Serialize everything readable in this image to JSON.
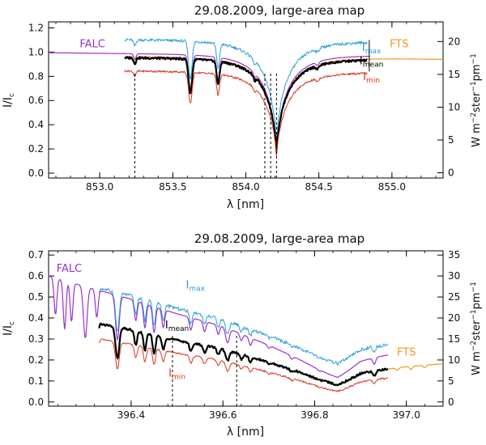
{
  "chart_data": [
    {
      "type": "line",
      "title": "29.08.2009, large-area map",
      "xlabel": "λ [nm]",
      "ylabel": "I/I",
      "ylabel_sub": "c",
      "ylabel_right": "W m",
      "ylabel_right_parts": {
        "p1": "W m",
        "sup1": "−2",
        "p2": "ster",
        "sup2": "−1",
        "p3": "pm",
        "sup3": "−1"
      },
      "xlim": [
        852.65,
        855.35
      ],
      "ylim": [
        -0.04,
        1.25
      ],
      "ylim_right": [
        -0.8,
        23.0
      ],
      "xticks": [
        853.0,
        853.5,
        854.0,
        854.5,
        855.0
      ],
      "xtick_labels": [
        "853.0",
        "853.5",
        "854.0",
        "854.5",
        "855.0"
      ],
      "yticks": [
        0.0,
        0.2,
        0.4,
        0.6,
        0.8,
        1.0,
        1.2
      ],
      "ytick_labels": [
        "0.0",
        "0.2",
        "0.4",
        "0.6",
        "0.8",
        "1.0",
        "1.2"
      ],
      "yticks_right": [
        0,
        5,
        10,
        15,
        20
      ],
      "ytick_right_labels": [
        "0",
        "5",
        "10",
        "15",
        "20"
      ],
      "continuum": {
        "x": [
          852.65,
          853.0,
          853.5,
          854.0,
          854.5,
          855.0,
          855.35
        ],
        "y": [
          0.995,
          0.99,
          0.985,
          0.98,
          0.975,
          0.97,
          0.965
        ]
      },
      "lines": [
        {
          "center": 853.24,
          "depth": 0.05,
          "width": 0.008
        },
        {
          "center": 853.62,
          "depth": 0.3,
          "width": 0.012
        },
        {
          "center": 853.81,
          "depth": 0.2,
          "width": 0.01
        },
        {
          "center": 854.21,
          "depth": 0.82,
          "width": 0.22,
          "shape": "chromospheric"
        },
        {
          "center": 854.06,
          "depth": 0.04,
          "width": 0.008
        },
        {
          "center": 854.49,
          "depth": 0.03,
          "width": 0.01
        }
      ],
      "series": [
        {
          "name": "FALC",
          "color": "#9933cc",
          "range": [
            852.65,
            854.85
          ],
          "scale": 1.0,
          "offset": 0.0,
          "noise": 0.0,
          "stroke": 1.2
        },
        {
          "name": "FTS",
          "color": "#ee9922",
          "range": [
            853.2,
            855.35
          ],
          "scale": 0.975,
          "offset": 0.0,
          "noise": 0.0,
          "stroke": 1.2
        },
        {
          "name": "I_max",
          "color": "#2a9fd8",
          "range": [
            853.17,
            854.83
          ],
          "scale": 1.055,
          "offset": 0.06,
          "noise": 0.012,
          "stroke": 1.0
        },
        {
          "name": "I_mean",
          "color": "#000000",
          "range": [
            853.17,
            854.83
          ],
          "scale": 0.965,
          "offset": 0.0,
          "noise": 0.009,
          "stroke": 2.2
        },
        {
          "name": "I_min",
          "color": "#dd3322",
          "range": [
            853.17,
            854.83
          ],
          "scale": 0.885,
          "offset": -0.03,
          "noise": 0.008,
          "stroke": 1.0
        }
      ],
      "vlines": [
        853.24,
        854.13,
        854.17,
        854.21
      ],
      "vlines_top": 0.84,
      "labels": {
        "FALC": {
          "text": "FALC",
          "color": "#9933cc",
          "x": 852.95,
          "y": 1.04
        },
        "FTS": {
          "text": "FTS",
          "color": "#ee9922",
          "x": 855.05,
          "y": 1.04
        },
        "I_max": {
          "text": "I",
          "sub": "max",
          "color": "#2a9fd8",
          "x": 854.86,
          "y": 1.01
        },
        "I_mean": {
          "text": "I",
          "sub": "mean",
          "color": "#000000",
          "x": 854.86,
          "y": 0.9
        },
        "I_min": {
          "text": "I",
          "sub": "min",
          "color": "#dd3322",
          "x": 854.86,
          "y": 0.77
        }
      },
      "bracket": {
        "x": 854.845,
        "y1": 0.84,
        "y2": 1.1
      }
    },
    {
      "type": "line",
      "title": "29.08.2009, large-area map",
      "xlabel": "λ [nm]",
      "ylabel": "I/I",
      "ylabel_sub": "c",
      "ylabel_right": "W m",
      "ylabel_right_parts": {
        "p1": "W m",
        "sup1": "−2",
        "p2": "ster",
        "sup2": "−1",
        "p3": "pm",
        "sup3": "−1"
      },
      "xlim": [
        396.22,
        397.08
      ],
      "ylim": [
        -0.02,
        0.72
      ],
      "ylim_right": [
        -1.0,
        36.0
      ],
      "xticks": [
        396.4,
        396.6,
        396.8,
        397.0
      ],
      "xtick_labels": [
        "396.4",
        "396.6",
        "396.8",
        "397.0"
      ],
      "yticks": [
        0.0,
        0.1,
        0.2,
        0.3,
        0.4,
        0.5,
        0.6,
        0.7
      ],
      "ytick_labels": [
        "0.0",
        "0.1",
        "0.2",
        "0.3",
        "0.4",
        "0.5",
        "0.6",
        "0.7"
      ],
      "yticks_right": [
        0,
        5,
        10,
        15,
        20,
        25,
        30,
        35
      ],
      "ytick_right_labels": [
        "0",
        "5",
        "10",
        "15",
        "20",
        "25",
        "30",
        "35"
      ],
      "continuum": {
        "x": [
          396.22,
          396.3,
          396.4,
          396.5,
          396.6,
          396.7,
          396.8,
          396.85,
          396.9,
          397.0,
          397.08
        ],
        "y": [
          0.6,
          0.55,
          0.49,
          0.42,
          0.36,
          0.27,
          0.17,
          0.13,
          0.2,
          0.24,
          0.26
        ]
      },
      "lines": [
        {
          "center": 396.235,
          "depth": 0.3,
          "width": 0.003
        },
        {
          "center": 396.255,
          "depth": 0.4,
          "width": 0.003
        },
        {
          "center": 396.27,
          "depth": 0.33,
          "width": 0.003
        },
        {
          "center": 396.3,
          "depth": 0.45,
          "width": 0.004
        },
        {
          "center": 396.325,
          "depth": 0.25,
          "width": 0.003
        },
        {
          "center": 396.37,
          "depth": 0.42,
          "width": 0.004
        },
        {
          "center": 396.41,
          "depth": 0.2,
          "width": 0.003
        },
        {
          "center": 396.43,
          "depth": 0.25,
          "width": 0.003
        },
        {
          "center": 396.45,
          "depth": 0.28,
          "width": 0.003
        },
        {
          "center": 396.47,
          "depth": 0.2,
          "width": 0.003
        },
        {
          "center": 396.53,
          "depth": 0.15,
          "width": 0.003
        },
        {
          "center": 396.56,
          "depth": 0.13,
          "width": 0.003
        },
        {
          "center": 396.59,
          "depth": 0.12,
          "width": 0.003
        },
        {
          "center": 396.61,
          "depth": 0.2,
          "width": 0.004
        },
        {
          "center": 396.64,
          "depth": 0.1,
          "width": 0.003
        },
        {
          "center": 396.66,
          "depth": 0.12,
          "width": 0.003
        },
        {
          "center": 396.7,
          "depth": 0.05,
          "width": 0.003
        },
        {
          "center": 396.75,
          "depth": 0.07,
          "width": 0.003
        },
        {
          "center": 396.81,
          "depth": 0.04,
          "width": 0.003
        },
        {
          "center": 396.85,
          "depth": 0.1,
          "width": 0.035
        },
        {
          "center": 396.93,
          "depth": 0.15,
          "width": 0.003
        },
        {
          "center": 396.98,
          "depth": 0.07,
          "width": 0.003
        },
        {
          "center": 397.01,
          "depth": 0.09,
          "width": 0.003
        },
        {
          "center": 397.04,
          "depth": 0.07,
          "width": 0.003
        }
      ],
      "series": [
        {
          "name": "FALC",
          "color": "#9933cc",
          "range": [
            396.22,
            396.96
          ],
          "scale": 1.0,
          "offset": 0.0,
          "noise": 0.0,
          "stroke": 1.2
        },
        {
          "name": "FTS",
          "color": "#ee9922",
          "range": [
            396.33,
            397.08
          ],
          "scale": 0.7,
          "offset": 0.0,
          "noise": 0.0,
          "stroke": 1.2
        },
        {
          "name": "I_max",
          "color": "#2a9fd8",
          "range": [
            396.33,
            396.96
          ],
          "scale": 0.87,
          "offset": 0.08,
          "noise": 0.008,
          "stroke": 1.0
        },
        {
          "name": "I_mean",
          "color": "#000000",
          "range": [
            396.33,
            396.96
          ],
          "scale": 0.7,
          "offset": 0.0,
          "noise": 0.005,
          "stroke": 2.2
        },
        {
          "name": "I_min",
          "color": "#dd3322",
          "range": [
            396.33,
            396.96
          ],
          "scale": 0.6,
          "offset": -0.02,
          "noise": 0.004,
          "stroke": 1.0
        }
      ],
      "vlines": [
        396.49,
        396.63
      ],
      "vlines_top": 0.32,
      "labels": {
        "FALC": {
          "text": "FALC",
          "color": "#9933cc",
          "x": 396.265,
          "y": 0.62
        },
        "FTS": {
          "text": "FTS",
          "color": "#ee9922",
          "x": 397.0,
          "y": 0.22
        },
        "I_max": {
          "text": "I",
          "sub": "max",
          "color": "#2a9fd8",
          "x": 396.54,
          "y": 0.54
        },
        "I_mean": {
          "text": "I",
          "sub": "mean",
          "color": "#000000",
          "x": 396.5,
          "y": 0.35
        },
        "I_min": {
          "text": "I",
          "sub": "min",
          "color": "#dd3322",
          "x": 396.5,
          "y": 0.12
        }
      },
      "bracket": null
    }
  ]
}
